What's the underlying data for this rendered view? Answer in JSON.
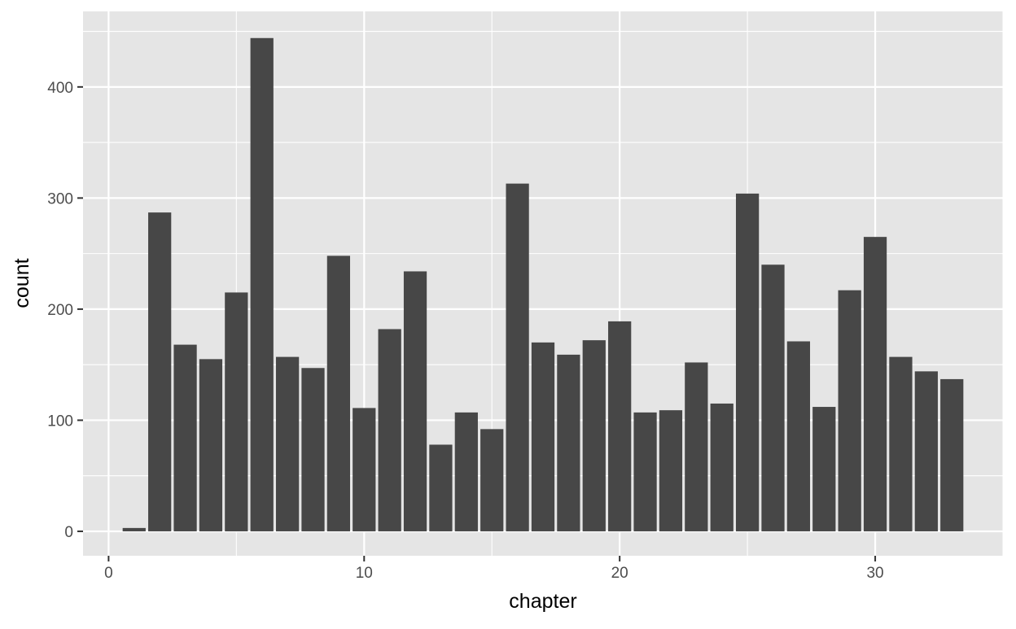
{
  "chart_data": {
    "type": "bar",
    "xlabel": "chapter",
    "ylabel": "count",
    "xlim": [
      -1,
      35
    ],
    "ylim": [
      -22,
      468
    ],
    "x_ticks": [
      0,
      10,
      20,
      30
    ],
    "x_tick_labels": [
      "0",
      "10",
      "20",
      "30"
    ],
    "y_ticks": [
      0,
      100,
      200,
      300,
      400
    ],
    "y_tick_labels": [
      "0",
      "100",
      "200",
      "300",
      "400"
    ],
    "grid": true,
    "bar_color": "#474747",
    "panel_background": "#e5e5e5",
    "grid_color": "#ffffff",
    "x": [
      1,
      2,
      3,
      4,
      5,
      6,
      7,
      8,
      9,
      10,
      11,
      12,
      13,
      14,
      15,
      16,
      17,
      18,
      19,
      20,
      21,
      22,
      23,
      24,
      25,
      26,
      27,
      28,
      29,
      30,
      31,
      32,
      33
    ],
    "values": [
      3,
      287,
      168,
      155,
      215,
      444,
      157,
      147,
      248,
      111,
      182,
      234,
      78,
      107,
      92,
      313,
      170,
      159,
      172,
      189,
      107,
      109,
      152,
      115,
      304,
      240,
      171,
      112,
      217,
      265,
      157,
      144,
      137
    ]
  }
}
